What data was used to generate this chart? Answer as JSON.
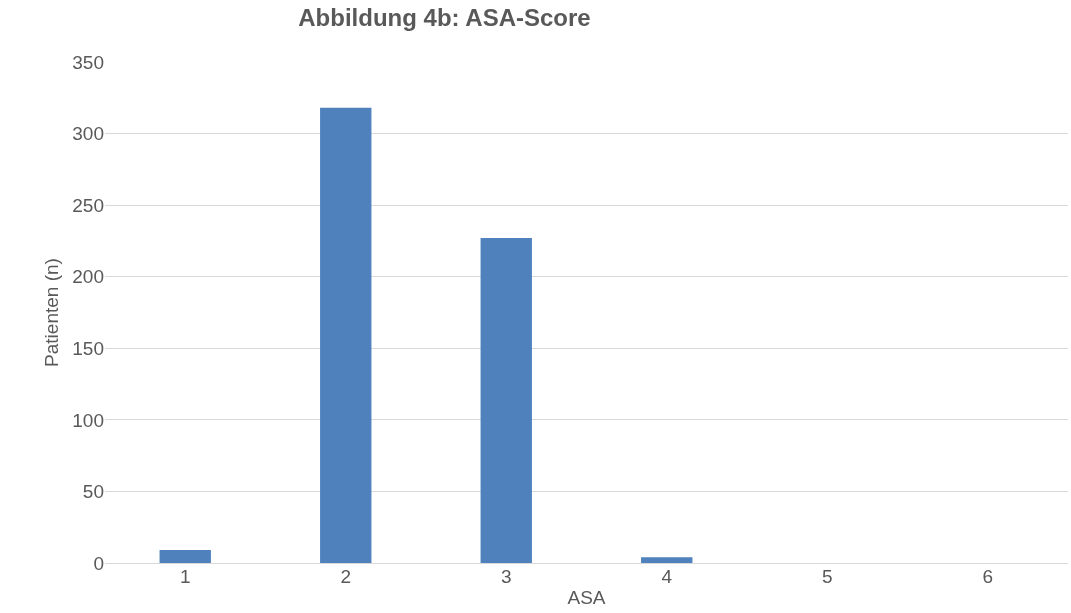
{
  "chart_data": {
    "type": "bar",
    "title": "Abbildung 4b: ASA-Score",
    "xlabel": "ASA",
    "ylabel": "Patienten (n)",
    "categories": [
      "1",
      "2",
      "3",
      "4",
      "5",
      "6"
    ],
    "values": [
      9,
      318,
      227,
      4,
      0,
      0
    ],
    "color": "#4f81bd",
    "ylim": [
      0,
      350
    ],
    "yticks": [
      0,
      50,
      100,
      150,
      200,
      250,
      300,
      350
    ],
    "grid": "y"
  }
}
